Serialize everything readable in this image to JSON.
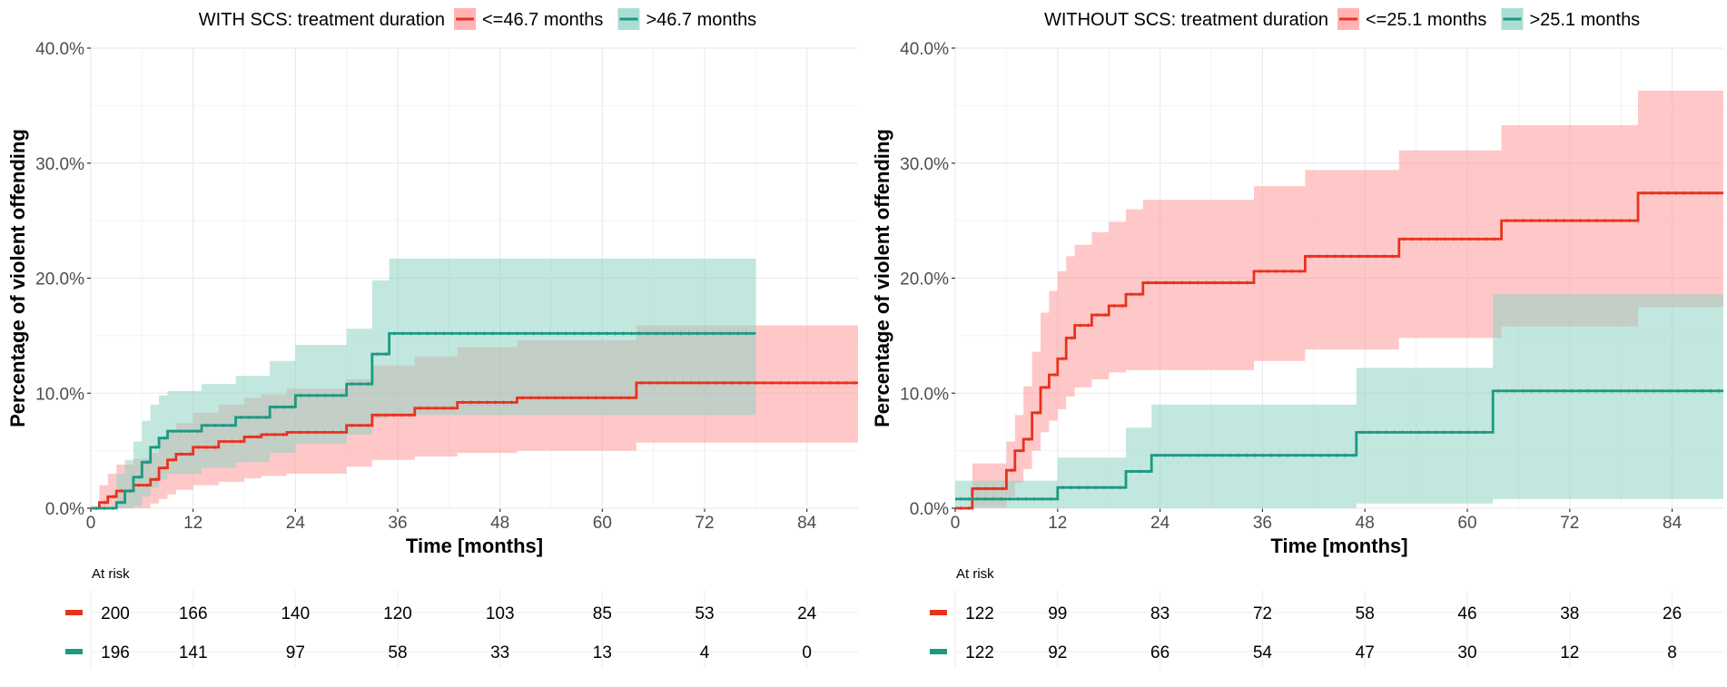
{
  "colors": {
    "short": "#e8321e",
    "long": "#1a9a82",
    "short_band": "#ff9a9a",
    "long_band": "#8fd3c4",
    "grid": "#ebebeb",
    "text": "#000000",
    "tick_text": "#4d4d4d"
  },
  "chart_data": [
    {
      "type": "line",
      "subtype": "cumulative-incidence-step",
      "legend_title": "WITH SCS: treatment duration",
      "xlabel": "Time [months]",
      "ylabel": "Percentage of violent offending",
      "xlim": [
        0,
        90
      ],
      "ylim": [
        0,
        40
      ],
      "x_ticks": [
        "0",
        "12",
        "24",
        "36",
        "48",
        "60",
        "72",
        "84"
      ],
      "y_ticks": [
        "0.0%",
        "10.0%",
        "20.0%",
        "30.0%",
        "40.0%"
      ],
      "risk_table_title": "At risk",
      "risk_times": [
        0,
        12,
        24,
        36,
        48,
        60,
        72,
        84
      ],
      "series": [
        {
          "name": "<=46.7 months",
          "color_key": "short",
          "x": [
            0,
            1,
            2,
            3,
            5,
            7,
            8,
            9,
            10,
            12,
            15,
            18,
            20,
            23,
            30,
            33,
            38,
            43,
            50,
            64,
            90
          ],
          "y": [
            0,
            0.5,
            1.0,
            1.5,
            2.0,
            2.5,
            3.5,
            4.2,
            4.7,
            5.3,
            5.8,
            6.2,
            6.4,
            6.6,
            7.2,
            8.1,
            8.7,
            9.2,
            9.6,
            10.9,
            10.9
          ],
          "lower": [
            0,
            0,
            0,
            0,
            0,
            0.4,
            0.8,
            1.2,
            1.6,
            2.0,
            2.3,
            2.6,
            2.8,
            3.0,
            3.6,
            4.2,
            4.5,
            4.8,
            5.0,
            5.7,
            5.7
          ],
          "upper": [
            0,
            2.0,
            3.0,
            3.8,
            4.3,
            4.8,
            6.0,
            6.8,
            7.4,
            8.3,
            9.0,
            9.6,
            9.9,
            10.4,
            11.2,
            12.4,
            13.2,
            14.0,
            14.6,
            15.9,
            15.9
          ],
          "at_risk": [
            "200",
            "166",
            "140",
            "120",
            "103",
            "85",
            "53",
            "24"
          ]
        },
        {
          "name": ">46.7 months",
          "color_key": "long",
          "x": [
            0,
            3,
            4,
            5,
            6,
            7,
            8,
            9,
            13,
            17,
            21,
            24,
            30,
            33,
            35,
            78
          ],
          "y": [
            0,
            0.5,
            1.5,
            2.7,
            4.0,
            5.3,
            6.1,
            6.7,
            7.2,
            7.9,
            8.8,
            9.8,
            10.8,
            13.4,
            15.2,
            15.2
          ],
          "lower": [
            0,
            0,
            0,
            0.2,
            1.0,
            1.8,
            2.5,
            3.0,
            3.5,
            4.0,
            4.8,
            5.6,
            6.4,
            7.8,
            8.1,
            8.1
          ],
          "upper": [
            0,
            3.0,
            4.2,
            5.8,
            7.6,
            9.0,
            9.8,
            10.2,
            10.8,
            11.5,
            12.8,
            14.2,
            15.6,
            19.8,
            21.7,
            21.7
          ],
          "at_risk": [
            "196",
            "141",
            "97",
            "58",
            "33",
            "13",
            "4",
            "0"
          ]
        }
      ]
    },
    {
      "type": "line",
      "subtype": "cumulative-incidence-step",
      "legend_title": "WITHOUT SCS: treatment duration",
      "xlabel": "Time [months]",
      "ylabel": "Percentage of violent offending",
      "xlim": [
        0,
        90
      ],
      "ylim": [
        0,
        40
      ],
      "x_ticks": [
        "0",
        "12",
        "24",
        "36",
        "48",
        "60",
        "72",
        "84"
      ],
      "y_ticks": [
        "0.0%",
        "10.0%",
        "20.0%",
        "30.0%",
        "40.0%"
      ],
      "risk_table_title": "At risk",
      "risk_times": [
        0,
        12,
        24,
        36,
        48,
        60,
        72,
        84
      ],
      "series": [
        {
          "name": "<=25.1 months",
          "color_key": "short",
          "x": [
            0,
            2,
            6,
            7,
            8,
            9,
            10,
            11,
            12,
            13,
            14,
            16,
            18,
            20,
            22,
            24,
            35,
            41,
            52,
            64,
            80,
            90
          ],
          "y": [
            0,
            1.7,
            3.3,
            5.0,
            6.0,
            8.3,
            10.5,
            11.6,
            13.0,
            14.8,
            15.9,
            16.8,
            17.6,
            18.6,
            19.6,
            19.6,
            20.6,
            21.9,
            23.4,
            25.0,
            27.4,
            27.4
          ],
          "lower": [
            0,
            0.1,
            1.0,
            2.2,
            3.4,
            5.0,
            6.6,
            7.6,
            8.6,
            9.7,
            10.5,
            11.2,
            11.8,
            12.0,
            12.0,
            12.0,
            12.8,
            13.8,
            14.8,
            15.8,
            17.5,
            17.5
          ],
          "upper": [
            0,
            3.9,
            5.8,
            8.1,
            10.6,
            13.6,
            17.0,
            18.9,
            20.6,
            21.9,
            22.9,
            24.0,
            24.9,
            26.0,
            26.8,
            26.8,
            28.0,
            29.4,
            31.1,
            33.3,
            36.3,
            36.3
          ],
          "at_risk": [
            "122",
            "99",
            "83",
            "72",
            "58",
            "46",
            "38",
            "26"
          ]
        },
        {
          "name": ">25.1 months",
          "color_key": "long",
          "x": [
            0,
            12,
            20,
            23,
            47,
            63,
            90
          ],
          "y": [
            0.8,
            1.8,
            3.2,
            4.6,
            6.6,
            10.2,
            10.2
          ],
          "lower": [
            0,
            0,
            0,
            0,
            0.4,
            0.8,
            0.8
          ],
          "upper": [
            2.4,
            4.4,
            7.0,
            9.0,
            12.2,
            18.6,
            17.2
          ],
          "at_risk": [
            "122",
            "92",
            "66",
            "54",
            "47",
            "30",
            "12",
            "8"
          ]
        }
      ]
    }
  ]
}
